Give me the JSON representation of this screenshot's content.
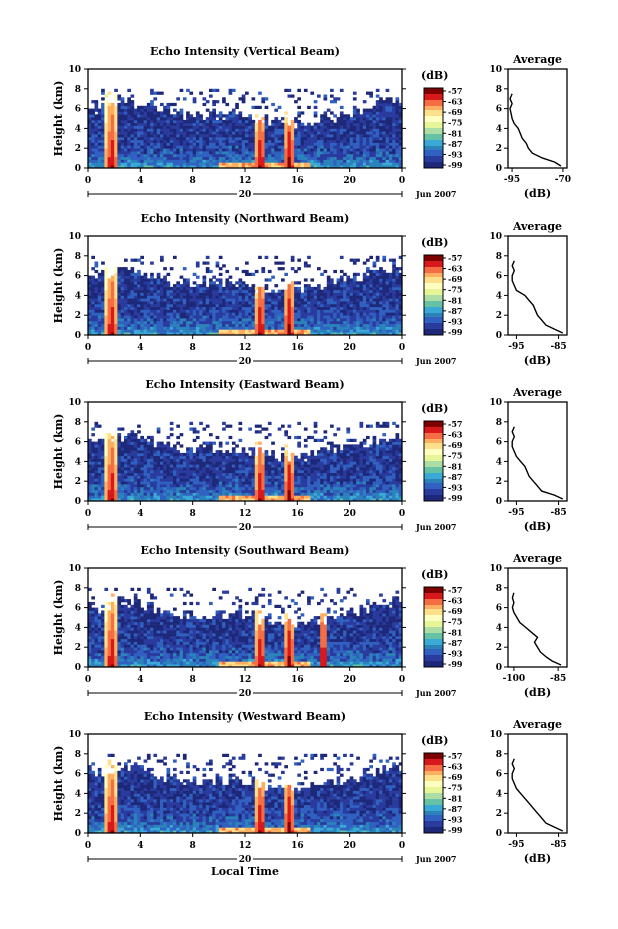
{
  "figure": {
    "xlabel": "Local Time",
    "date_label": "Jun 2007",
    "day_label": "20",
    "colorbar_unit": "(dB)",
    "colorbar_ticks": [
      "-57",
      "-63",
      "-69",
      "-75",
      "-81",
      "-87",
      "-93",
      "-99"
    ],
    "colormap": [
      "#7f0000",
      "#d7191c",
      "#f46d43",
      "#fdae61",
      "#fee08b",
      "#ffffbf",
      "#e6f598",
      "#abdda4",
      "#66c2a5",
      "#3aa9d6",
      "#2b83ba",
      "#3060c0",
      "#2a3b9e",
      "#1e2878"
    ]
  },
  "chart_data": [
    {
      "type": "heatmap",
      "title": "Echo Intensity (Vertical Beam)",
      "ylabel": "Height (km)",
      "xlabel": "",
      "x_ticks": [
        "0",
        "4",
        "8",
        "12",
        "16",
        "20",
        "0"
      ],
      "y_ticks": [
        "0",
        "2",
        "4",
        "6",
        "8",
        "10"
      ],
      "xlim": [
        0,
        24
      ],
      "ylim": [
        0,
        10
      ],
      "clim": [
        -99,
        -57
      ],
      "rain_events_hours": [
        1.8,
        13.2,
        15.4
      ],
      "profile": {
        "title": "Average",
        "xlabel": "(dB)",
        "x_ticks": [
          "-95",
          "-70"
        ],
        "y_ticks": [
          "0",
          "2",
          "4",
          "6",
          "8",
          "10"
        ],
        "xlim": [
          -97,
          -68
        ],
        "ylim": [
          0,
          10
        ],
        "height_km": [
          0.2,
          0.6,
          1.0,
          1.5,
          2.0,
          2.5,
          3.0,
          3.5,
          4.0,
          4.5,
          5.0,
          5.5,
          6.0,
          6.5,
          7.0,
          7.5
        ],
        "db": [
          -71,
          -74,
          -80,
          -85,
          -87,
          -88,
          -90,
          -91,
          -92,
          -94,
          -95,
          -95.5,
          -96,
          -95,
          -96,
          -95
        ]
      }
    },
    {
      "type": "heatmap",
      "title": "Echo Intensity (Northward Beam)",
      "ylabel": "Height (km)",
      "xlabel": "",
      "x_ticks": [
        "0",
        "4",
        "8",
        "12",
        "16",
        "20",
        "0"
      ],
      "y_ticks": [
        "0",
        "2",
        "4",
        "6",
        "8",
        "10"
      ],
      "xlim": [
        0,
        24
      ],
      "ylim": [
        0,
        10
      ],
      "clim": [
        -99,
        -57
      ],
      "rain_events_hours": [
        1.8,
        13.2,
        15.4
      ],
      "profile": {
        "title": "Average",
        "xlabel": "(dB)",
        "x_ticks": [
          "-95",
          "-85"
        ],
        "y_ticks": [
          "0",
          "2",
          "4",
          "6",
          "8",
          "10"
        ],
        "xlim": [
          -97,
          -83
        ],
        "ylim": [
          0,
          10
        ],
        "height_km": [
          0.2,
          0.6,
          1.0,
          1.5,
          2.0,
          2.5,
          3.0,
          3.5,
          4.0,
          4.5,
          5.0,
          5.5,
          6.0,
          6.5,
          7.0,
          7.5
        ],
        "db": [
          -84,
          -86,
          -88,
          -89,
          -90,
          -90.5,
          -91,
          -92,
          -93,
          -95,
          -95.5,
          -96,
          -96,
          -95.5,
          -96,
          -95.5
        ]
      }
    },
    {
      "type": "heatmap",
      "title": "Echo Intensity (Eastward Beam)",
      "ylabel": "Height (km)",
      "xlabel": "",
      "x_ticks": [
        "0",
        "4",
        "8",
        "12",
        "16",
        "20",
        "0"
      ],
      "y_ticks": [
        "0",
        "2",
        "4",
        "6",
        "8",
        "10"
      ],
      "xlim": [
        0,
        24
      ],
      "ylim": [
        0,
        10
      ],
      "clim": [
        -99,
        -57
      ],
      "rain_events_hours": [
        1.8,
        13.2,
        15.4
      ],
      "profile": {
        "title": "Average",
        "xlabel": "(dB)",
        "x_ticks": [
          "-95",
          "-85"
        ],
        "y_ticks": [
          "0",
          "2",
          "4",
          "6",
          "8",
          "10"
        ],
        "xlim": [
          -97,
          -83
        ],
        "ylim": [
          0,
          10
        ],
        "height_km": [
          0.2,
          0.6,
          1.0,
          1.5,
          2.0,
          2.5,
          3.0,
          3.5,
          4.0,
          4.5,
          5.0,
          5.5,
          6.0,
          6.5,
          7.0,
          7.5
        ],
        "db": [
          -84,
          -86,
          -89,
          -90,
          -91,
          -92,
          -92.5,
          -93,
          -94,
          -95,
          -95.5,
          -96,
          -96,
          -95.5,
          -96,
          -95.5
        ]
      }
    },
    {
      "type": "heatmap",
      "title": "Echo Intensity (Southward Beam)",
      "ylabel": "Height (km)",
      "xlabel": "",
      "x_ticks": [
        "0",
        "4",
        "8",
        "12",
        "16",
        "20",
        "0"
      ],
      "y_ticks": [
        "0",
        "2",
        "4",
        "6",
        "8",
        "10"
      ],
      "xlim": [
        0,
        24
      ],
      "ylim": [
        0,
        10
      ],
      "clim": [
        -99,
        -57
      ],
      "rain_events_hours": [
        1.8,
        13.2,
        15.4,
        18.0
      ],
      "profile": {
        "title": "Average",
        "xlabel": "(dB)",
        "x_ticks": [
          "-100",
          "-85"
        ],
        "y_ticks": [
          "0",
          "2",
          "4",
          "6",
          "8",
          "10"
        ],
        "xlim": [
          -102,
          -82
        ],
        "ylim": [
          0,
          10
        ],
        "height_km": [
          0.2,
          0.6,
          1.0,
          1.5,
          2.0,
          2.5,
          3.0,
          3.5,
          4.0,
          4.5,
          5.0,
          5.5,
          6.0,
          6.5,
          7.0,
          7.5
        ],
        "db": [
          -84,
          -87,
          -89,
          -91,
          -92,
          -93,
          -92,
          -94,
          -96,
          -98,
          -99,
          -100,
          -100.5,
          -100,
          -100.5,
          -100
        ]
      }
    },
    {
      "type": "heatmap",
      "title": "Echo Intensity (Westward Beam)",
      "ylabel": "Height (km)",
      "xlabel": "Local Time",
      "x_ticks": [
        "0",
        "4",
        "8",
        "12",
        "16",
        "20",
        "0"
      ],
      "y_ticks": [
        "0",
        "2",
        "4",
        "6",
        "8",
        "10"
      ],
      "xlim": [
        0,
        24
      ],
      "ylim": [
        0,
        10
      ],
      "clim": [
        -99,
        -57
      ],
      "rain_events_hours": [
        1.8,
        13.2,
        15.4
      ],
      "profile": {
        "title": "Average",
        "xlabel": "(dB)",
        "x_ticks": [
          "-95",
          "-85"
        ],
        "y_ticks": [
          "0",
          "2",
          "4",
          "6",
          "8",
          "10"
        ],
        "xlim": [
          -97,
          -83
        ],
        "ylim": [
          0,
          10
        ],
        "height_km": [
          0.2,
          0.6,
          1.0,
          1.5,
          2.0,
          2.5,
          3.0,
          3.5,
          4.0,
          4.5,
          5.0,
          5.5,
          6.0,
          6.5,
          7.0,
          7.5
        ],
        "db": [
          -84,
          -86,
          -88,
          -89,
          -90,
          -91,
          -92,
          -93,
          -94,
          -95,
          -95.5,
          -96,
          -96,
          -95.5,
          -96,
          -95.5
        ]
      }
    }
  ]
}
